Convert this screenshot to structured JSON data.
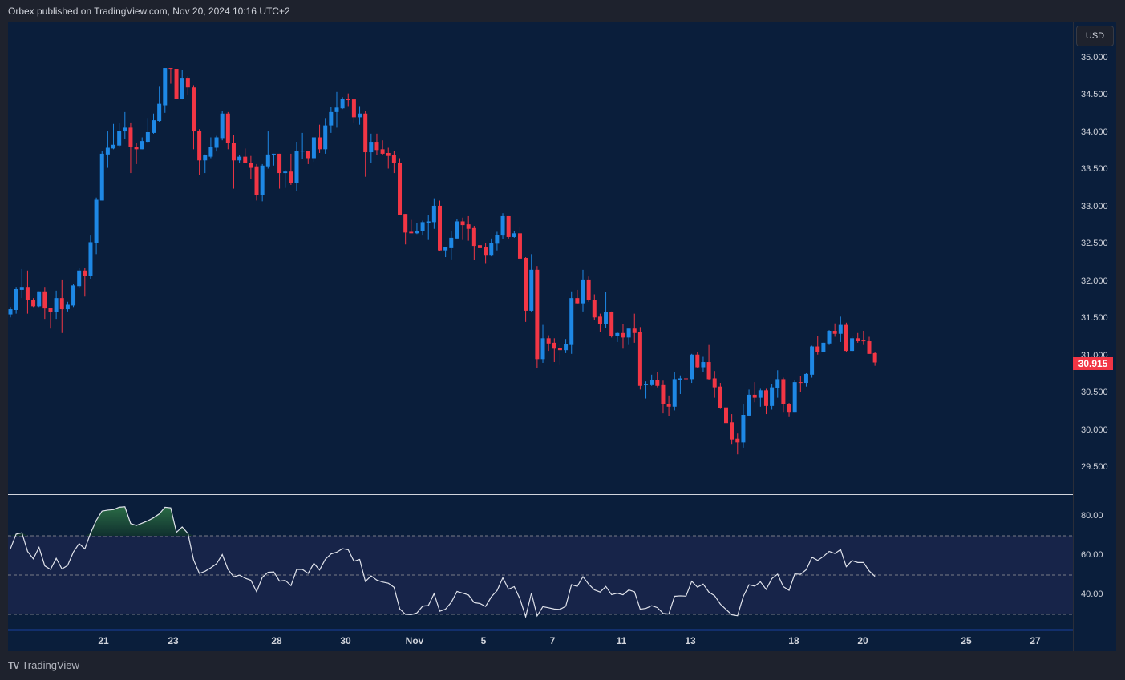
{
  "header": {
    "text": "Orbex published on TradingView.com, Nov 20, 2024 10:16 UTC+2"
  },
  "currency": "USD",
  "current_price": "30.915",
  "colors": {
    "up": "#1e88e5",
    "down": "#f23645",
    "bg": "#0a1e3b",
    "rsi_band": "#172449",
    "rsi_line": "#e0e3eb"
  },
  "price_ticks": [
    "35.000",
    "34.500",
    "34.000",
    "33.500",
    "33.000",
    "32.500",
    "32.000",
    "31.500",
    "31.000",
    "30.500",
    "30.000",
    "29.500"
  ],
  "rsi_ticks": [
    "80.00",
    "60.00",
    "40.00"
  ],
  "x_labels": [
    "21",
    "23",
    "28",
    "30",
    "Nov",
    "5",
    "7",
    "11",
    "13",
    "18",
    "20",
    "25",
    "27"
  ],
  "footer": {
    "brand": "TradingView"
  },
  "chart_data": {
    "type": "candlestick",
    "price_range": [
      29.5,
      35.0
    ],
    "rsi_levels": {
      "upper": 70,
      "middle": 50,
      "lower": 30
    },
    "ohlc": [
      [
        31.56,
        31.66,
        31.52,
        31.63
      ],
      [
        31.62,
        31.93,
        31.57,
        31.9
      ],
      [
        31.89,
        32.17,
        31.78,
        31.93
      ],
      [
        31.93,
        32.15,
        31.57,
        31.75
      ],
      [
        31.75,
        31.78,
        31.66,
        31.67
      ],
      [
        31.67,
        31.87,
        31.66,
        31.87
      ],
      [
        31.87,
        31.93,
        31.5,
        31.64
      ],
      [
        31.65,
        31.65,
        31.37,
        31.59
      ],
      [
        31.59,
        31.88,
        31.5,
        31.78
      ],
      [
        31.78,
        32.03,
        31.31,
        31.63
      ],
      [
        31.63,
        31.73,
        31.6,
        31.69
      ],
      [
        31.68,
        31.97,
        31.66,
        31.95
      ],
      [
        31.94,
        32.18,
        31.91,
        32.15
      ],
      [
        32.15,
        32.18,
        31.8,
        32.08
      ],
      [
        32.08,
        32.62,
        32.04,
        32.53
      ],
      [
        32.52,
        33.13,
        32.37,
        33.1
      ],
      [
        33.09,
        33.76,
        33.09,
        33.72
      ],
      [
        33.71,
        34.02,
        33.53,
        33.8
      ],
      [
        33.79,
        34.12,
        33.78,
        33.84
      ],
      [
        33.83,
        34.13,
        33.81,
        34.03
      ],
      [
        34.02,
        34.28,
        33.92,
        34.07
      ],
      [
        34.07,
        34.14,
        33.46,
        33.81
      ],
      [
        33.81,
        33.86,
        33.58,
        33.78
      ],
      [
        33.78,
        33.94,
        33.78,
        33.89
      ],
      [
        33.88,
        34.2,
        33.86,
        34.01
      ],
      [
        34.0,
        34.26,
        33.99,
        34.17
      ],
      [
        34.16,
        34.63,
        34.15,
        34.39
      ],
      [
        34.37,
        34.87,
        34.27,
        34.87
      ],
      [
        34.87,
        34.87,
        34.66,
        34.86
      ],
      [
        34.86,
        34.86,
        34.46,
        34.46
      ],
      [
        34.46,
        34.84,
        34.45,
        34.73
      ],
      [
        34.73,
        34.76,
        34.51,
        34.61
      ],
      [
        34.61,
        34.64,
        33.78,
        34.02
      ],
      [
        34.03,
        34.05,
        33.43,
        33.63
      ],
      [
        33.63,
        33.71,
        33.46,
        33.7
      ],
      [
        33.68,
        33.94,
        33.66,
        33.81
      ],
      [
        33.8,
        33.96,
        33.75,
        33.94
      ],
      [
        33.93,
        34.3,
        33.9,
        34.26
      ],
      [
        34.26,
        34.28,
        33.78,
        33.86
      ],
      [
        33.86,
        33.97,
        33.25,
        33.63
      ],
      [
        33.63,
        33.7,
        33.6,
        33.68
      ],
      [
        33.68,
        33.79,
        33.59,
        33.59
      ],
      [
        33.59,
        33.69,
        33.38,
        33.53
      ],
      [
        33.55,
        33.58,
        33.09,
        33.17
      ],
      [
        33.17,
        33.58,
        33.08,
        33.56
      ],
      [
        33.55,
        34.02,
        33.52,
        33.71
      ],
      [
        33.71,
        33.72,
        33.56,
        33.72
      ],
      [
        33.72,
        33.72,
        33.25,
        33.46
      ],
      [
        33.46,
        33.5,
        33.26,
        33.48
      ],
      [
        33.48,
        33.72,
        33.3,
        33.33
      ],
      [
        33.33,
        33.88,
        33.22,
        33.76
      ],
      [
        33.76,
        34.0,
        33.65,
        33.76
      ],
      [
        33.76,
        33.76,
        33.58,
        33.66
      ],
      [
        33.66,
        33.94,
        33.61,
        33.94
      ],
      [
        33.94,
        34.11,
        33.73,
        33.78
      ],
      [
        33.78,
        34.2,
        33.72,
        34.1
      ],
      [
        34.1,
        34.35,
        34.0,
        34.28
      ],
      [
        34.28,
        34.55,
        34.07,
        34.34
      ],
      [
        34.33,
        34.48,
        34.32,
        34.46
      ],
      [
        34.46,
        34.53,
        34.36,
        34.44
      ],
      [
        34.45,
        34.45,
        34.14,
        34.21
      ],
      [
        34.21,
        34.36,
        34.11,
        34.26
      ],
      [
        34.26,
        34.29,
        33.41,
        33.74
      ],
      [
        33.74,
        33.99,
        33.6,
        33.88
      ],
      [
        33.88,
        33.99,
        33.7,
        33.77
      ],
      [
        33.78,
        33.9,
        33.7,
        33.72
      ],
      [
        33.73,
        33.8,
        33.52,
        33.69
      ],
      [
        33.7,
        33.76,
        33.46,
        33.59
      ],
      [
        33.6,
        33.66,
        32.9,
        32.9
      ],
      [
        32.91,
        32.91,
        32.5,
        32.66
      ],
      [
        32.67,
        32.83,
        32.65,
        32.65
      ],
      [
        32.65,
        32.79,
        32.64,
        32.68
      ],
      [
        32.68,
        32.82,
        32.62,
        32.8
      ],
      [
        32.79,
        32.89,
        32.56,
        32.81
      ],
      [
        32.8,
        33.12,
        32.71,
        33.02
      ],
      [
        33.02,
        33.09,
        32.41,
        32.42
      ],
      [
        32.42,
        32.47,
        32.33,
        32.46
      ],
      [
        32.45,
        32.68,
        32.3,
        32.59
      ],
      [
        32.58,
        32.84,
        32.58,
        32.81
      ],
      [
        32.81,
        32.86,
        32.56,
        32.76
      ],
      [
        32.77,
        32.88,
        32.55,
        32.71
      ],
      [
        32.72,
        32.75,
        32.29,
        32.48
      ],
      [
        32.49,
        32.53,
        32.45,
        32.45
      ],
      [
        32.46,
        32.52,
        32.25,
        32.36
      ],
      [
        32.36,
        32.58,
        32.34,
        32.52
      ],
      [
        32.51,
        32.67,
        32.42,
        32.63
      ],
      [
        32.62,
        32.92,
        32.57,
        32.88
      ],
      [
        32.88,
        32.88,
        32.58,
        32.6
      ],
      [
        32.6,
        32.68,
        32.59,
        32.65
      ],
      [
        32.65,
        32.73,
        32.28,
        32.31
      ],
      [
        32.32,
        32.33,
        31.46,
        31.61
      ],
      [
        31.61,
        32.37,
        31.59,
        32.16
      ],
      [
        32.16,
        32.21,
        30.84,
        30.96
      ],
      [
        30.96,
        31.42,
        30.91,
        31.24
      ],
      [
        31.24,
        31.28,
        31.07,
        31.17
      ],
      [
        31.18,
        31.24,
        30.92,
        31.1
      ],
      [
        31.11,
        31.16,
        30.88,
        31.08
      ],
      [
        31.08,
        31.23,
        31.04,
        31.16
      ],
      [
        31.15,
        31.87,
        31.03,
        31.78
      ],
      [
        31.78,
        31.89,
        31.7,
        31.71
      ],
      [
        31.71,
        32.16,
        31.6,
        32.03
      ],
      [
        32.03,
        32.07,
        31.73,
        31.75
      ],
      [
        31.76,
        31.83,
        31.49,
        31.52
      ],
      [
        31.53,
        31.57,
        31.32,
        31.43
      ],
      [
        31.43,
        31.86,
        31.38,
        31.59
      ],
      [
        31.59,
        31.6,
        31.25,
        31.27
      ],
      [
        31.27,
        31.33,
        31.19,
        31.31
      ],
      [
        31.31,
        31.43,
        31.1,
        31.25
      ],
      [
        31.25,
        31.37,
        31.15,
        31.37
      ],
      [
        31.37,
        31.57,
        31.18,
        31.31
      ],
      [
        31.32,
        31.39,
        30.55,
        30.6
      ],
      [
        30.61,
        30.66,
        30.43,
        30.62
      ],
      [
        30.61,
        30.75,
        30.6,
        30.68
      ],
      [
        30.68,
        30.79,
        30.58,
        30.6
      ],
      [
        30.61,
        30.67,
        30.23,
        30.35
      ],
      [
        30.36,
        30.47,
        30.19,
        30.32
      ],
      [
        30.32,
        30.78,
        30.27,
        30.69
      ],
      [
        30.68,
        30.74,
        30.49,
        30.7
      ],
      [
        30.7,
        30.82,
        30.67,
        30.69
      ],
      [
        30.69,
        31.03,
        30.64,
        31.02
      ],
      [
        31.02,
        31.05,
        30.84,
        30.85
      ],
      [
        30.85,
        30.99,
        30.79,
        30.92
      ],
      [
        30.92,
        31.15,
        30.68,
        30.69
      ],
      [
        30.7,
        30.8,
        30.44,
        30.58
      ],
      [
        30.59,
        30.64,
        30.29,
        30.3
      ],
      [
        30.31,
        30.42,
        30.04,
        30.1
      ],
      [
        30.11,
        30.22,
        29.82,
        29.88
      ],
      [
        29.89,
        29.96,
        29.68,
        29.84
      ],
      [
        29.84,
        30.35,
        29.77,
        30.21
      ],
      [
        30.2,
        30.55,
        30.19,
        30.48
      ],
      [
        30.48,
        30.65,
        30.38,
        30.44
      ],
      [
        30.44,
        30.56,
        30.32,
        30.54
      ],
      [
        30.54,
        30.56,
        30.22,
        30.33
      ],
      [
        30.33,
        30.62,
        30.28,
        30.58
      ],
      [
        30.57,
        30.81,
        30.44,
        30.69
      ],
      [
        30.69,
        30.71,
        30.24,
        30.35
      ],
      [
        30.36,
        30.37,
        30.18,
        30.24
      ],
      [
        30.24,
        30.68,
        30.24,
        30.65
      ],
      [
        30.65,
        30.73,
        30.52,
        30.64
      ],
      [
        30.64,
        30.77,
        30.59,
        30.76
      ],
      [
        30.75,
        31.14,
        30.71,
        31.13
      ],
      [
        31.13,
        31.27,
        31.02,
        31.06
      ],
      [
        31.06,
        31.18,
        31.05,
        31.18
      ],
      [
        31.17,
        31.35,
        31.15,
        31.34
      ],
      [
        31.34,
        31.44,
        31.26,
        31.3
      ],
      [
        31.3,
        31.53,
        31.19,
        31.42
      ],
      [
        31.42,
        31.45,
        31.06,
        31.07
      ],
      [
        31.07,
        31.27,
        31.05,
        31.24
      ],
      [
        31.24,
        31.31,
        31.18,
        31.2
      ],
      [
        31.21,
        31.34,
        31.15,
        31.2
      ],
      [
        31.2,
        31.26,
        31.03,
        31.03
      ],
      [
        31.04,
        31.06,
        30.87,
        30.915
      ]
    ]
  }
}
